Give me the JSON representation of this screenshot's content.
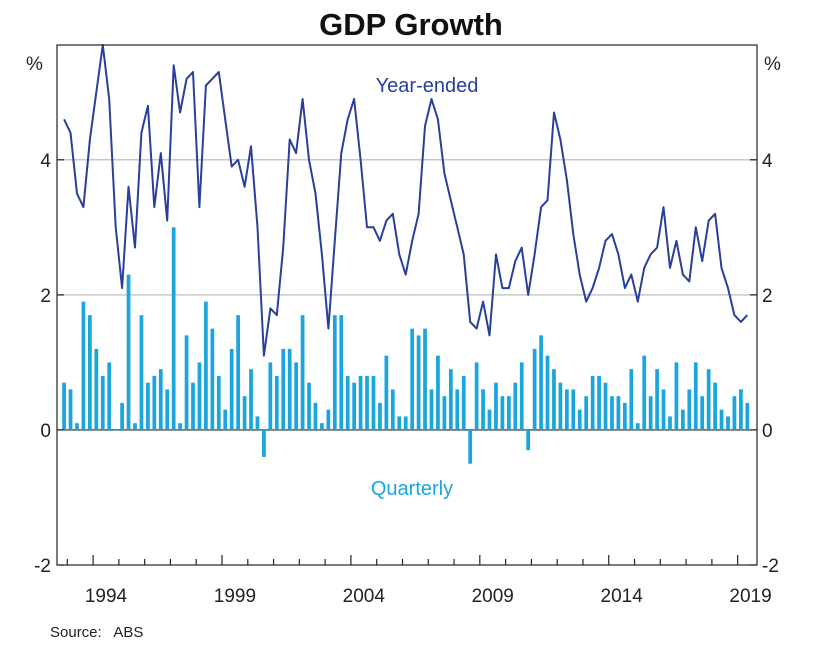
{
  "chart_data": {
    "type": "bar+line",
    "title": "GDP Growth",
    "unit_left": "%",
    "unit_right": "%",
    "ylim": [
      -2,
      5.7
    ],
    "yticks": [
      -2,
      0,
      2,
      4
    ],
    "xlim": [
      1992.6,
      2019.75
    ],
    "xtick_labels": [
      "1994",
      "1999",
      "2004",
      "2009",
      "2014",
      "2019"
    ],
    "grid": "horizontal at 2 and 4; zero line",
    "source": "Source:   ABS",
    "colors": {
      "year_ended": "#283f9c",
      "quarterly": "#1aa6dc",
      "grid": "#c8c8c8",
      "axis": "#222222"
    },
    "series": [
      {
        "name": "Year-ended",
        "kind": "line",
        "start": "1992-Q4",
        "values": [
          4.6,
          4.4,
          3.5,
          3.3,
          4.3,
          5.0,
          5.7,
          4.9,
          3.0,
          2.1,
          3.6,
          2.7,
          4.4,
          4.8,
          3.3,
          4.1,
          3.1,
          5.4,
          4.7,
          5.2,
          5.3,
          3.3,
          5.1,
          5.2,
          5.3,
          4.6,
          3.9,
          4.0,
          3.6,
          4.2,
          3.0,
          1.1,
          1.8,
          1.7,
          2.7,
          4.3,
          4.1,
          4.9,
          4.0,
          3.5,
          2.6,
          1.5,
          2.8,
          4.1,
          4.6,
          4.9,
          4.0,
          3.0,
          3.0,
          2.8,
          3.1,
          3.2,
          2.6,
          2.3,
          2.8,
          3.2,
          4.5,
          4.9,
          4.6,
          3.8,
          3.4,
          3.0,
          2.6,
          1.6,
          1.5,
          1.9,
          1.4,
          2.6,
          2.1,
          2.1,
          2.5,
          2.7,
          2.0,
          2.6,
          3.3,
          3.4,
          4.7,
          4.3,
          3.7,
          2.9,
          2.3,
          1.9,
          2.1,
          2.4,
          2.8,
          2.9,
          2.6,
          2.1,
          2.3,
          1.9,
          2.4,
          2.6,
          2.7,
          3.3,
          2.4,
          2.8,
          2.3,
          2.2,
          3.0,
          2.5,
          3.1,
          3.2,
          2.4,
          2.1,
          1.7,
          1.6,
          1.7
        ]
      },
      {
        "name": "Quarterly",
        "kind": "bar",
        "start": "1992-Q4",
        "values": [
          0.7,
          0.6,
          0.1,
          1.9,
          1.7,
          1.2,
          0.8,
          1.0,
          0.0,
          0.4,
          2.3,
          0.1,
          1.7,
          0.7,
          0.8,
          0.9,
          0.6,
          3.0,
          0.1,
          1.4,
          0.7,
          1.0,
          1.9,
          1.5,
          0.8,
          0.3,
          1.2,
          1.7,
          0.5,
          0.9,
          0.2,
          -0.4,
          1.0,
          0.8,
          1.2,
          1.2,
          1.0,
          1.7,
          0.7,
          0.4,
          0.1,
          0.3,
          1.7,
          1.7,
          0.8,
          0.7,
          0.8,
          0.8,
          0.8,
          0.4,
          1.1,
          0.6,
          0.2,
          0.2,
          1.5,
          1.4,
          1.5,
          0.6,
          1.1,
          0.5,
          0.9,
          0.6,
          0.8,
          -0.5,
          1.0,
          0.6,
          0.3,
          0.7,
          0.5,
          0.5,
          0.7,
          1.0,
          -0.3,
          1.2,
          1.4,
          1.1,
          0.9,
          0.7,
          0.6,
          0.6,
          0.3,
          0.5,
          0.8,
          0.8,
          0.7,
          0.5,
          0.5,
          0.4,
          0.9,
          0.1,
          1.1,
          0.5,
          0.9,
          0.6,
          0.2,
          1.0,
          0.3,
          0.6,
          1.0,
          0.5,
          0.9,
          0.7,
          0.3,
          0.2,
          0.5,
          0.6,
          0.4
        ]
      }
    ]
  }
}
